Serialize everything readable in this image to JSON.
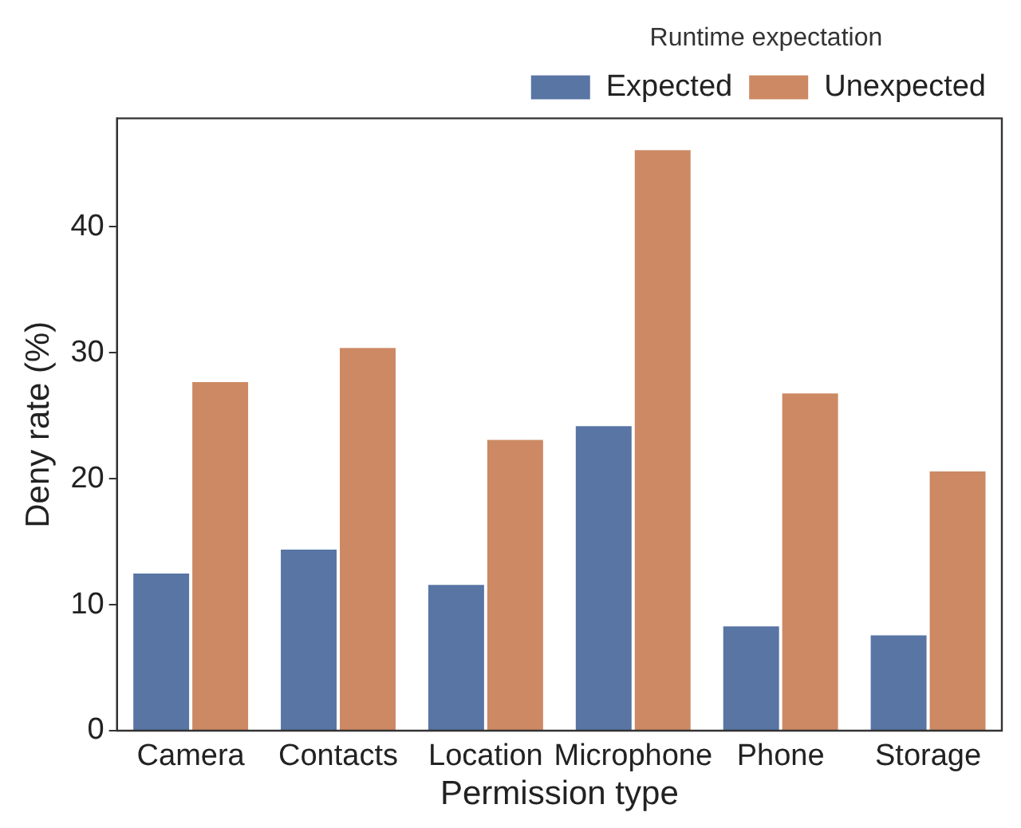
{
  "chart_data": {
    "type": "bar",
    "xlabel": "Permission type",
    "ylabel": "Deny rate (%)",
    "legend_title": "Runtime expectation",
    "categories": [
      "Camera",
      "Contacts",
      "Location",
      "Microphone",
      "Phone",
      "Storage"
    ],
    "series": [
      {
        "name": "Expected",
        "color": "#5875a4",
        "values": [
          12.6,
          14.5,
          11.7,
          24.3,
          8.4,
          7.7
        ]
      },
      {
        "name": "Unexpected",
        "color": "#cc8963",
        "values": [
          27.8,
          30.5,
          23.2,
          46.2,
          26.9,
          20.7
        ]
      }
    ],
    "ylim": [
      0,
      48.6
    ],
    "yticks": [
      0,
      10,
      20,
      30,
      40
    ],
    "grid": false,
    "legend": "top right"
  }
}
